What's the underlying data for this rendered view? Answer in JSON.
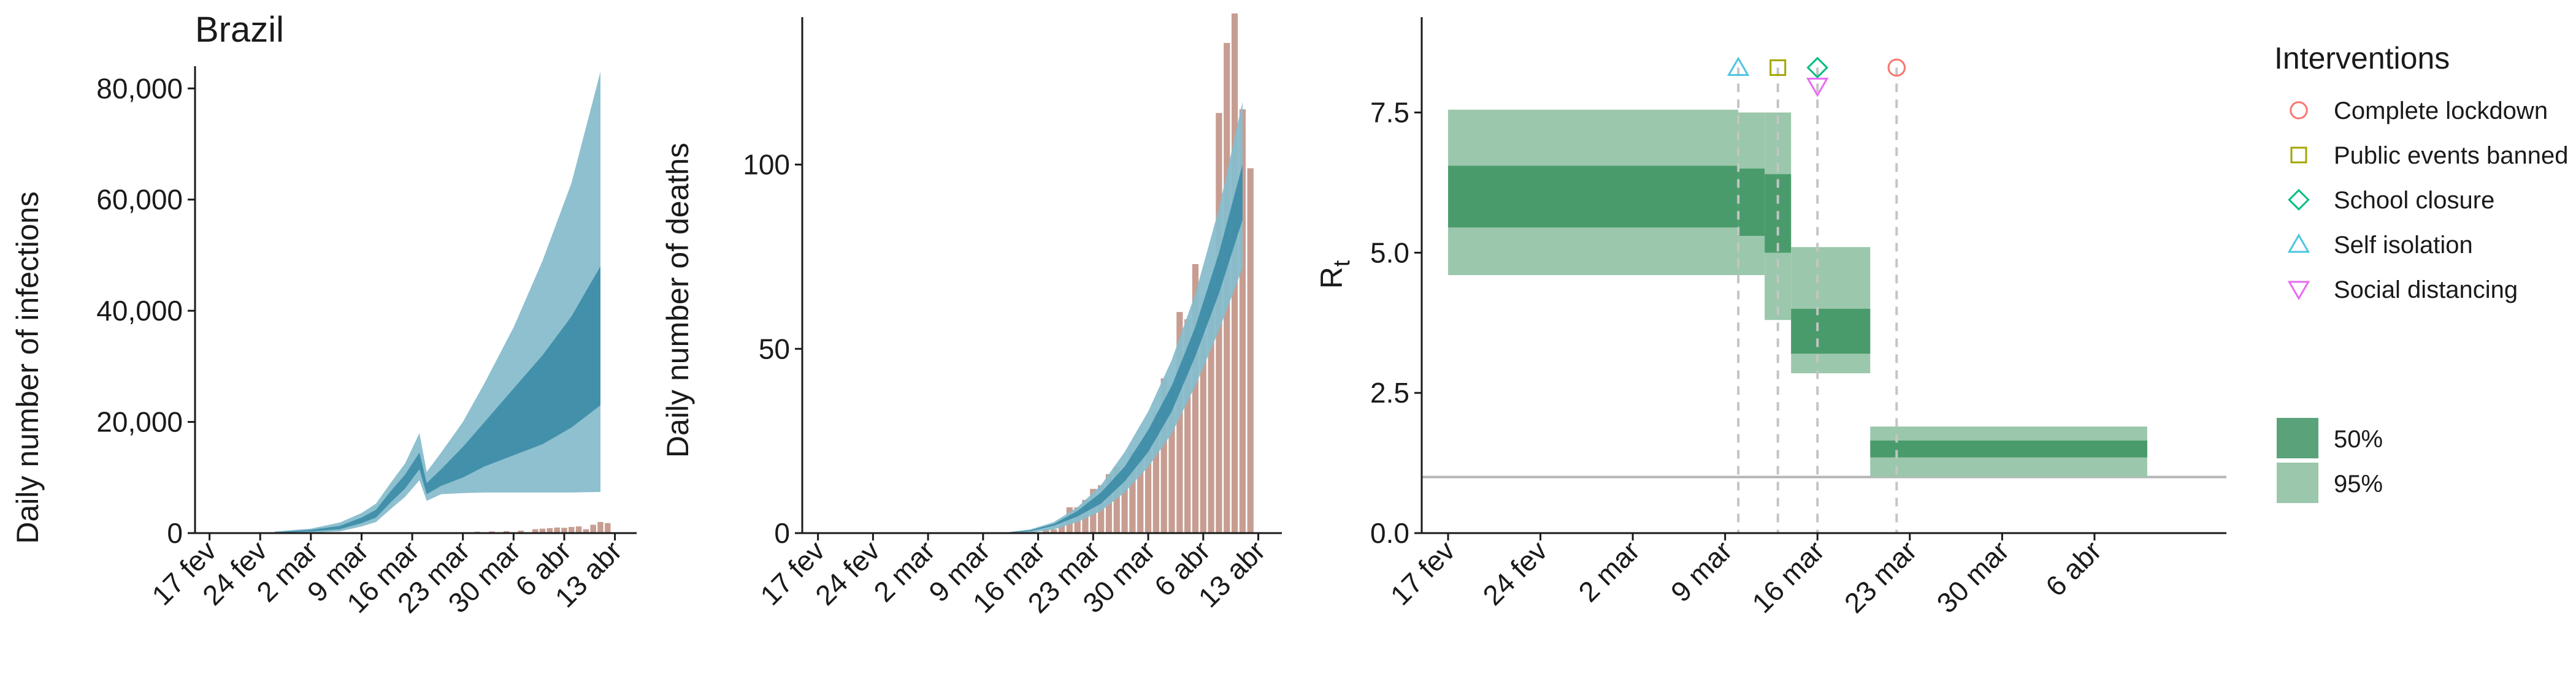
{
  "chart_data": [
    {
      "type": "area",
      "title": "Brazil",
      "ylabel": "Daily number of infections",
      "x_type": "date",
      "x_ticks": [
        "2020-02-17",
        "2020-02-24",
        "2020-03-02",
        "2020-03-09",
        "2020-03-16",
        "2020-03-23",
        "2020-03-30",
        "2020-04-06",
        "2020-04-13"
      ],
      "x_tick_labels": [
        "17 fev",
        "24 fev",
        "2 mar",
        "9 mar",
        "16 mar",
        "23 mar",
        "30 mar",
        "6 abr",
        "13 abr"
      ],
      "xlim": [
        "2020-02-15",
        "2020-04-16"
      ],
      "ylim": [
        0,
        84000
      ],
      "y_ticks": [
        0,
        20000,
        40000,
        60000,
        80000
      ],
      "y_tick_labels": [
        "0",
        "20,000",
        "40,000",
        "60,000",
        "80,000"
      ],
      "ribbons": {
        "x": [
          "2020-02-26",
          "2020-03-02",
          "2020-03-06",
          "2020-03-09",
          "2020-03-11",
          "2020-03-13",
          "2020-03-15",
          "2020-03-17",
          "2020-03-18",
          "2020-03-20",
          "2020-03-23",
          "2020-03-26",
          "2020-03-30",
          "2020-04-03",
          "2020-04-07",
          "2020-04-11"
        ],
        "ci95_low": [
          0,
          100,
          300,
          1200,
          2000,
          4300,
          6500,
          9500,
          5800,
          7000,
          7200,
          7300,
          7300,
          7300,
          7300,
          7400
        ],
        "ci95_high": [
          300,
          800,
          1900,
          3600,
          5300,
          9000,
          12500,
          18000,
          11000,
          14500,
          20000,
          27000,
          37000,
          49000,
          63000,
          83000
        ],
        "ci50_low": [
          50,
          300,
          700,
          1800,
          2800,
          5500,
          8000,
          11500,
          7000,
          8500,
          10000,
          12000,
          14000,
          16000,
          19000,
          23000
        ],
        "ci50_high": [
          150,
          600,
          1300,
          2800,
          4200,
          7500,
          10500,
          14500,
          9000,
          11500,
          15500,
          20000,
          26000,
          32000,
          39000,
          48000
        ]
      },
      "bars": {
        "x": [
          "2020-03-25",
          "2020-03-27",
          "2020-03-29",
          "2020-03-31",
          "2020-04-02",
          "2020-04-03",
          "2020-04-04",
          "2020-04-05",
          "2020-04-06",
          "2020-04-07",
          "2020-04-08",
          "2020-04-09",
          "2020-04-10",
          "2020-04-11",
          "2020-04-12"
        ],
        "values": [
          250,
          300,
          350,
          450,
          700,
          800,
          900,
          1000,
          950,
          1100,
          1200,
          700,
          1500,
          2000,
          1800
        ]
      },
      "colors": {
        "ci95": "#88bdcc",
        "ci50": "#3b8ba6",
        "bars": "#c79d92"
      }
    },
    {
      "type": "area",
      "ylabel": "Daily number of deaths",
      "x_type": "date",
      "x_ticks": [
        "2020-02-17",
        "2020-02-24",
        "2020-03-02",
        "2020-03-09",
        "2020-03-16",
        "2020-03-23",
        "2020-03-30",
        "2020-04-06",
        "2020-04-13"
      ],
      "x_tick_labels": [
        "17 fev",
        "24 fev",
        "2 mar",
        "9 mar",
        "16 mar",
        "23 mar",
        "30 mar",
        "6 abr",
        "13 abr"
      ],
      "xlim": [
        "2020-02-15",
        "2020-04-16"
      ],
      "ylim": [
        0,
        140
      ],
      "y_ticks": [
        0,
        50,
        100
      ],
      "y_tick_labels": [
        "0",
        "50",
        "100"
      ],
      "ribbons": {
        "x": [
          "2020-03-09",
          "2020-03-12",
          "2020-03-15",
          "2020-03-18",
          "2020-03-21",
          "2020-03-24",
          "2020-03-27",
          "2020-03-30",
          "2020-04-02",
          "2020-04-05",
          "2020-04-08",
          "2020-04-11"
        ],
        "ci95_low": [
          0,
          0,
          0.1,
          1,
          3,
          6,
          11,
          18,
          27,
          40,
          55,
          72
        ],
        "ci95_high": [
          0,
          0.2,
          1,
          3,
          7,
          13,
          22,
          33,
          47,
          65,
          88,
          117
        ],
        "ci50_low": [
          0,
          0.1,
          0.5,
          2,
          4.5,
          8,
          14,
          22,
          33,
          48,
          65,
          85
        ],
        "ci50_high": [
          0,
          0.15,
          0.8,
          2.5,
          6,
          11,
          18,
          28,
          40,
          56,
          76,
          100
        ]
      },
      "bars": {
        "x": [
          "2020-03-17",
          "2020-03-18",
          "2020-03-19",
          "2020-03-20",
          "2020-03-21",
          "2020-03-22",
          "2020-03-23",
          "2020-03-24",
          "2020-03-25",
          "2020-03-26",
          "2020-03-27",
          "2020-03-28",
          "2020-03-29",
          "2020-03-30",
          "2020-03-31",
          "2020-04-01",
          "2020-04-02",
          "2020-04-03",
          "2020-04-04",
          "2020-04-05",
          "2020-04-06",
          "2020-04-07",
          "2020-04-08",
          "2020-04-09",
          "2020-04-10",
          "2020-04-11",
          "2020-04-12"
        ],
        "values": [
          1,
          1,
          3,
          7,
          7,
          9,
          12,
          13,
          16,
          18,
          16,
          22,
          23,
          23,
          33,
          42,
          40,
          60,
          58,
          73,
          54,
          67,
          114,
          133,
          141,
          115,
          99
        ]
      },
      "colors": {
        "ci95": "#88bdcc",
        "ci50": "#3b8ba6",
        "bars": "#c79d92"
      }
    },
    {
      "type": "area",
      "ylabel": "R",
      "ylabel_subscript": "t",
      "x_type": "date",
      "x_ticks": [
        "2020-02-17",
        "2020-02-24",
        "2020-03-02",
        "2020-03-09",
        "2020-03-16",
        "2020-03-23",
        "2020-03-30",
        "2020-04-06"
      ],
      "x_tick_labels": [
        "17 fev",
        "24 fev",
        "2 mar",
        "9 mar",
        "16 mar",
        "23 mar",
        "30 mar",
        "6 abr"
      ],
      "xlim": [
        "2020-02-15",
        "2020-04-16"
      ],
      "ylim": [
        0,
        9.2
      ],
      "y_ticks": [
        0,
        2.5,
        5,
        7.5
      ],
      "y_tick_labels": [
        "0.0",
        "2.5",
        "5.0",
        "7.5"
      ],
      "reference_line": 1,
      "steps": [
        {
          "start": "2020-02-17",
          "end": "2020-03-10",
          "ci50": [
            5.45,
            6.55
          ],
          "ci95": [
            4.6,
            7.55
          ]
        },
        {
          "start": "2020-03-10",
          "end": "2020-03-12",
          "ci50": [
            5.3,
            6.5
          ],
          "ci95": [
            4.6,
            7.5
          ]
        },
        {
          "start": "2020-03-12",
          "end": "2020-03-14",
          "ci50": [
            5.0,
            6.4
          ],
          "ci95": [
            3.8,
            7.5
          ]
        },
        {
          "start": "2020-03-14",
          "end": "2020-03-20",
          "ci50": [
            3.2,
            4.0
          ],
          "ci95": [
            2.85,
            5.1
          ]
        },
        {
          "start": "2020-03-20",
          "end": "2020-04-10",
          "ci50": [
            1.35,
            1.65
          ],
          "ci95": [
            1.0,
            1.9
          ]
        }
      ],
      "interventions": [
        {
          "name": "Self isolation",
          "date": "2020-03-10",
          "symbol": "triangle-up",
          "color": "#4dc4e0"
        },
        {
          "name": "Public events banned",
          "date": "2020-03-13",
          "symbol": "square",
          "color": "#a3a500"
        },
        {
          "name": "School closure",
          "date": "2020-03-16",
          "symbol": "diamond",
          "color": "#00bf7d"
        },
        {
          "name": "Social distancing",
          "date": "2020-03-16",
          "symbol": "triangle-down",
          "color": "#e76bf3"
        },
        {
          "name": "Complete lockdown",
          "date": "2020-03-22",
          "symbol": "circle",
          "color": "#f8766d"
        }
      ],
      "colors": {
        "ci50": "#4a9b6b",
        "ci95": "#9bc7ac",
        "reference": "#b5b5b5",
        "vline": "#c4c4c4"
      }
    }
  ],
  "legend": {
    "interventions_title": "Interventions",
    "interventions": [
      {
        "label": "Complete lockdown",
        "symbol": "circle",
        "color": "#f8766d"
      },
      {
        "label": "Public events banned",
        "symbol": "square",
        "color": "#a3a500"
      },
      {
        "label": "School closure",
        "symbol": "diamond",
        "color": "#00bf7d"
      },
      {
        "label": "Self isolation",
        "symbol": "triangle-up",
        "color": "#4dc4e0"
      },
      {
        "label": "Social distancing",
        "symbol": "triangle-down",
        "color": "#e76bf3"
      }
    ],
    "intervals": [
      {
        "label": "50%",
        "color": "#5aa37a"
      },
      {
        "label": "95%",
        "color": "#9bc7ac"
      }
    ]
  }
}
